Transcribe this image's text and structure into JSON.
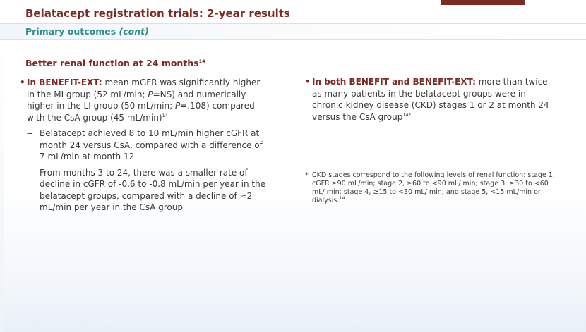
{
  "header": {
    "title": "Belatacept registration trials: 2-year results",
    "subtitle": "Primary outcomes",
    "subtitle_cont": "(cont)"
  },
  "section": {
    "heading": "Better renal function at 24 months",
    "heading_ref": "14"
  },
  "left": {
    "bullet_lead": "In BENEFIT-EXT:",
    "bullet_text_1": " mean mGFR was significantly higher in the MI group (52 mL/min; ",
    "bullet_p1": "P",
    "bullet_text_2": "=NS) and numerically higher in the LI group (50 mL/min; ",
    "bullet_p2": "P",
    "bullet_text_3": "=.108) compared with the CsA group (45 mL/min)",
    "bullet_ref": "14",
    "sub1": "Belatacept achieved 8 to 10 mL/min higher cGFR at month 24 versus CsA, compared with a difference of 7 mL/min at month 12",
    "sub2": "From months 3 to 24, there was a smaller rate of decline in cGFR of -0.6 to -0.8 mL/min per year in the belatacept groups, compared with a decline of ≈2 mL/min per year in the CsA group",
    "dash": "--"
  },
  "right": {
    "bullet_lead": "In both BENEFIT and BENEFIT-EXT:",
    "bullet_text": " more than twice as many patients in the belatacept groups were in chronic kidney disease (CKD) stages 1 or 2 at month 24 versus the CsA group",
    "bullet_ref": "14*"
  },
  "footnote": {
    "star": "*",
    "text": "CKD stages correspond to the following levels of renal function: stage 1, cGFR ≥90 mL/min; stage 2, ≥60 to <90 mL/ min; stage 3, ≥30 to <60 mL/ min; stage 4, ≥15 to <30 mL/ min; and stage 5, <15 mL/min or dialysis.",
    "ref": "14"
  },
  "bullet_symbol": "•",
  "colors": {
    "accent": "#7d2a22",
    "subtitle": "#2f8f87",
    "text": "#3a3a3a"
  }
}
